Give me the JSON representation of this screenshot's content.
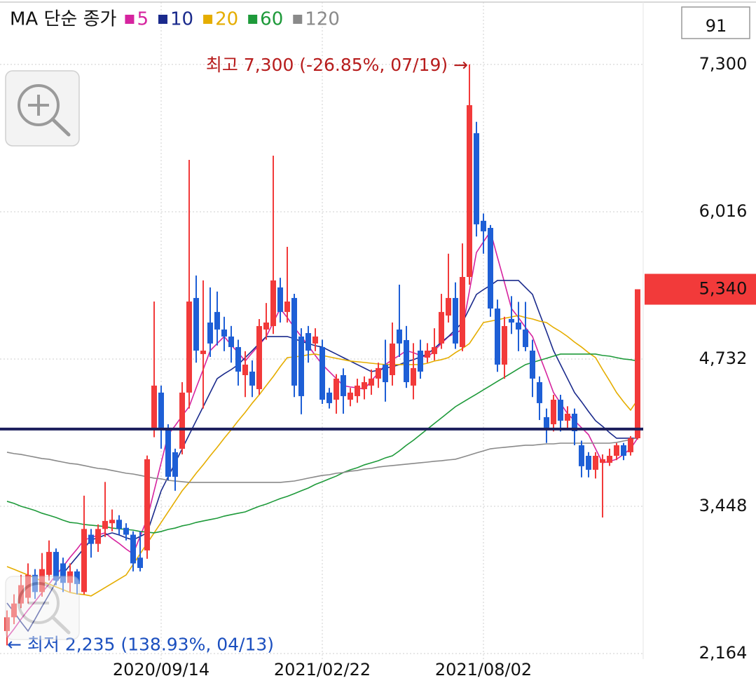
{
  "chart_data": {
    "type": "candlestick",
    "legend_title": "MA 단순 종가",
    "visible_count": 91,
    "up_color": "#f23a3a",
    "down_color": "#1e5fd6",
    "grid": true,
    "ylim": [
      2115,
      7862
    ],
    "yticks": [
      {
        "value": 2164,
        "label": "2,164"
      },
      {
        "value": 3448,
        "label": "3,448"
      },
      {
        "value": 4732,
        "label": "4,732"
      },
      {
        "value": 6016,
        "label": "6,016"
      },
      {
        "value": 7300,
        "label": "7,300"
      }
    ],
    "last_price": {
      "value": 5340,
      "label": "5,340"
    },
    "reference_line": 4121,
    "annotations": [
      {
        "text": "최고 7,300 (-26.85%, 07/19) →",
        "at": 66,
        "color": "#b71c1c"
      },
      {
        "text": "← 최저 2,235 (138.93%, 04/13)",
        "at": 0,
        "color": "#1b4fbf"
      }
    ],
    "categories": [
      null,
      null,
      null,
      null,
      null,
      null,
      null,
      null,
      null,
      null,
      null,
      null,
      null,
      null,
      null,
      null,
      null,
      null,
      null,
      null,
      null,
      null,
      "2020/09/14",
      null,
      null,
      null,
      null,
      null,
      null,
      null,
      null,
      null,
      null,
      null,
      null,
      null,
      null,
      null,
      null,
      null,
      null,
      null,
      null,
      null,
      null,
      "2021/02/22",
      null,
      null,
      null,
      null,
      null,
      null,
      null,
      null,
      null,
      null,
      null,
      null,
      null,
      null,
      null,
      null,
      null,
      null,
      null,
      null,
      null,
      null,
      "2021/08/02",
      null,
      null,
      null,
      null,
      null,
      null,
      null,
      null,
      null,
      null,
      null,
      null,
      null,
      null,
      null,
      null,
      null,
      null,
      null,
      null,
      null,
      null
    ],
    "open": [
      2360,
      2480,
      2600,
      2650,
      2850,
      2700,
      2850,
      3050,
      2950,
      2780,
      2880,
      2700,
      3200,
      3120,
      3250,
      3300,
      3330,
      3260,
      3200,
      3000,
      3063,
      4133,
      4439,
      4133,
      3919,
      3949,
      4439,
      5264,
      4775,
      5050,
      5142,
      4989,
      4928,
      4836,
      4591,
      4622,
      4469,
      4989,
      5019,
      5356,
      5142,
      5264,
      4928,
      4958,
      4867,
      4836,
      4439,
      4377,
      4591,
      4377,
      4408,
      4469,
      4500,
      4561,
      4683,
      4591,
      4989,
      4897,
      4500,
      4805,
      4744,
      4775,
      4867,
      5111,
      5264,
      4836,
      5447,
      6701,
      5937,
      5875,
      5172,
      4683,
      5081,
      5050,
      4989,
      4805,
      4530,
      4225,
      4163,
      4377,
      4194,
      4255,
      3980,
      3888,
      3766,
      3827,
      3827,
      3888,
      3980,
      3919,
      4041
    ],
    "high": [
      2540,
      2680,
      2850,
      2950,
      2900,
      3040,
      3150,
      3080,
      3000,
      2950,
      2900,
      3540,
      3250,
      3290,
      3660,
      3420,
      3370,
      3300,
      3230,
      3230,
      3890,
      5233,
      4500,
      4163,
      3950,
      4530,
      6468,
      5460,
      5417,
      5356,
      5320,
      5100,
      5020,
      4900,
      4800,
      4720,
      5080,
      5220,
      6505,
      5440,
      5710,
      5300,
      5000,
      5020,
      5000,
      4900,
      4480,
      4600,
      4650,
      4480,
      4560,
      4580,
      4640,
      4700,
      4900,
      5050,
      5380,
      5020,
      4870,
      4900,
      4870,
      5000,
      5300,
      5650,
      5400,
      5740,
      7300,
      6800,
      6000,
      5900,
      5250,
      5100,
      5280,
      5230,
      5230,
      4900,
      4580,
      4300,
      4420,
      4420,
      4320,
      4300,
      4020,
      3920,
      3920,
      3900,
      3950,
      4000,
      4000,
      4060,
      5340
    ],
    "low": [
      2235,
      2420,
      2560,
      2600,
      2640,
      2660,
      2800,
      2760,
      2700,
      2700,
      2680,
      2680,
      3000,
      3050,
      3180,
      3230,
      3200,
      3150,
      2880,
      2880,
      2990,
      4050,
      3950,
      3674,
      3583,
      3900,
      4300,
      4700,
      4300,
      4750,
      4850,
      4800,
      4700,
      4500,
      4400,
      4400,
      4420,
      4900,
      4950,
      5050,
      5050,
      4400,
      4250,
      4700,
      4800,
      4340,
      4300,
      4255,
      4255,
      4320,
      4350,
      4380,
      4420,
      4480,
      4360,
      4500,
      4750,
      4480,
      4380,
      4560,
      4700,
      4720,
      4820,
      5050,
      4820,
      4800,
      5380,
      5800,
      5650,
      5100,
      4620,
      4560,
      4950,
      4800,
      4800,
      4400,
      4200,
      4000,
      4100,
      4100,
      4120,
      3980,
      3700,
      3700,
      3690,
      3350,
      3800,
      3850,
      3850,
      3890,
      4030
    ],
    "close": [
      2480,
      2600,
      2760,
      2850,
      2700,
      2900,
      3050,
      2800,
      2780,
      2880,
      2770,
      3250,
      3120,
      3250,
      3320,
      3330,
      3250,
      3200,
      2950,
      2910,
      3858,
      4500,
      4133,
      3705,
      3705,
      4439,
      5233,
      4805,
      4805,
      4867,
      4989,
      4928,
      4836,
      4622,
      4683,
      4500,
      5019,
      5050,
      5417,
      5142,
      5233,
      4500,
      4408,
      4805,
      4928,
      4377,
      4347,
      4561,
      4408,
      4439,
      4500,
      4530,
      4561,
      4653,
      4530,
      4867,
      4867,
      4530,
      4653,
      4622,
      4805,
      4836,
      5142,
      5264,
      4867,
      5447,
      6945,
      5906,
      5845,
      5172,
      4683,
      5019,
      5050,
      4989,
      4836,
      4561,
      4347,
      4133,
      4377,
      4194,
      4255,
      4102,
      3797,
      3766,
      3888,
      3858,
      3888,
      3980,
      3888,
      4041,
      5340
    ],
    "series": [
      {
        "name": "5",
        "color": "#d6249f",
        "values": [
          2299,
          2378,
          2464,
          2543,
          2617,
          2696,
          2770,
          2849,
          2922,
          3002,
          3075,
          3155,
          3173,
          3198,
          3216,
          3167,
          3124,
          3075,
          3033,
          3185,
          3338,
          3583,
          3827,
          4072,
          4151,
          4237,
          4316,
          4481,
          4640,
          4805,
          4867,
          4928,
          4854,
          4787,
          4714,
          4787,
          4854,
          4928,
          5050,
          5172,
          5093,
          5007,
          4928,
          4848,
          4763,
          4683,
          4622,
          4561,
          4500,
          4488,
          4481,
          4469,
          4542,
          4610,
          4683,
          4726,
          4763,
          4805,
          4787,
          4763,
          4744,
          4805,
          4867,
          4928,
          4958,
          4989,
          5325,
          5661,
          5753,
          5845,
          5619,
          5399,
          5172,
          5093,
          5007,
          4928,
          4763,
          4604,
          4439,
          4347,
          4255,
          4194,
          4133,
          4072,
          3949,
          3827,
          3839,
          3858,
          3901,
          3949,
          4042
        ]
      },
      {
        "name": "10",
        "color": "#1a2a8c",
        "values": [
          2604,
          2525,
          2439,
          2360,
          2464,
          2574,
          2678,
          2788,
          2861,
          2935,
          3008,
          3082,
          3155,
          3173,
          3198,
          3216,
          3198,
          3173,
          3155,
          3185,
          3216,
          3399,
          3583,
          3705,
          3827,
          3949,
          4072,
          4194,
          4316,
          4439,
          4561,
          4603,
          4640,
          4683,
          4744,
          4805,
          4867,
          4928,
          4928,
          4928,
          4928,
          4909,
          4885,
          4867,
          4848,
          4836,
          4805,
          4775,
          4744,
          4714,
          4683,
          4653,
          4622,
          4634,
          4653,
          4665,
          4683,
          4708,
          4726,
          4750,
          4775,
          4824,
          4879,
          4928,
          4989,
          5050,
          5172,
          5295,
          5337,
          5374,
          5417,
          5417,
          5417,
          5417,
          5356,
          5295,
          5130,
          4971,
          4805,
          4683,
          4561,
          4439,
          4359,
          4274,
          4194,
          4145,
          4090,
          4041,
          4041,
          4041,
          4041
        ]
      },
      {
        "name": "20",
        "color": "#e5ad00",
        "values": [
          2922,
          2898,
          2873,
          2849,
          2825,
          2794,
          2770,
          2745,
          2721,
          2696,
          2684,
          2678,
          2666,
          2702,
          2739,
          2776,
          2812,
          2849,
          2941,
          3033,
          3124,
          3216,
          3307,
          3399,
          3491,
          3583,
          3656,
          3736,
          3809,
          3888,
          3962,
          4041,
          4115,
          4194,
          4267,
          4347,
          4420,
          4500,
          4579,
          4665,
          4744,
          4750,
          4757,
          4769,
          4775,
          4763,
          4750,
          4738,
          4726,
          4714,
          4708,
          4702,
          4695,
          4689,
          4683,
          4683,
          4683,
          4683,
          4683,
          4683,
          4695,
          4714,
          4726,
          4744,
          4787,
          4824,
          4867,
          4958,
          5050,
          5062,
          5074,
          5087,
          5099,
          5111,
          5093,
          5081,
          5062,
          5050,
          5007,
          4971,
          4928,
          4879,
          4836,
          4787,
          4744,
          4640,
          4542,
          4439,
          4359,
          4286,
          4377
        ]
      },
      {
        "name": "60",
        "color": "#1e9a3a",
        "values": [
          3491,
          3473,
          3448,
          3430,
          3411,
          3387,
          3369,
          3350,
          3326,
          3307,
          3301,
          3289,
          3283,
          3277,
          3271,
          3258,
          3252,
          3246,
          3240,
          3228,
          3222,
          3216,
          3228,
          3246,
          3258,
          3277,
          3289,
          3307,
          3320,
          3332,
          3344,
          3362,
          3375,
          3387,
          3399,
          3424,
          3448,
          3467,
          3491,
          3515,
          3534,
          3558,
          3583,
          3607,
          3638,
          3662,
          3687,
          3711,
          3742,
          3766,
          3784,
          3809,
          3827,
          3845,
          3870,
          3888,
          3931,
          3980,
          4023,
          4072,
          4121,
          4170,
          4218,
          4267,
          4316,
          4353,
          4390,
          4426,
          4463,
          4500,
          4537,
          4573,
          4610,
          4647,
          4683,
          4702,
          4720,
          4738,
          4757,
          4775,
          4775,
          4775,
          4775,
          4775,
          4775,
          4763,
          4757,
          4744,
          4732,
          4726,
          4714
        ]
      },
      {
        "name": "120",
        "color": "#8a8a8a",
        "values": [
          3919,
          3907,
          3900,
          3888,
          3876,
          3864,
          3858,
          3845,
          3833,
          3821,
          3815,
          3803,
          3790,
          3778,
          3772,
          3760,
          3748,
          3736,
          3729,
          3717,
          3705,
          3693,
          3687,
          3674,
          3668,
          3662,
          3656,
          3656,
          3656,
          3656,
          3656,
          3656,
          3656,
          3656,
          3656,
          3656,
          3656,
          3656,
          3656,
          3656,
          3662,
          3668,
          3680,
          3693,
          3705,
          3717,
          3723,
          3736,
          3742,
          3754,
          3760,
          3772,
          3778,
          3790,
          3797,
          3803,
          3809,
          3815,
          3821,
          3827,
          3833,
          3840,
          3845,
          3852,
          3858,
          3876,
          3894,
          3913,
          3931,
          3949,
          3956,
          3962,
          3968,
          3974,
          3980,
          3980,
          3986,
          3992,
          3992,
          3998,
          3998,
          3998,
          3998,
          3998,
          3998,
          3998,
          3998,
          4005,
          4017,
          4029,
          4047
        ]
      }
    ]
  }
}
